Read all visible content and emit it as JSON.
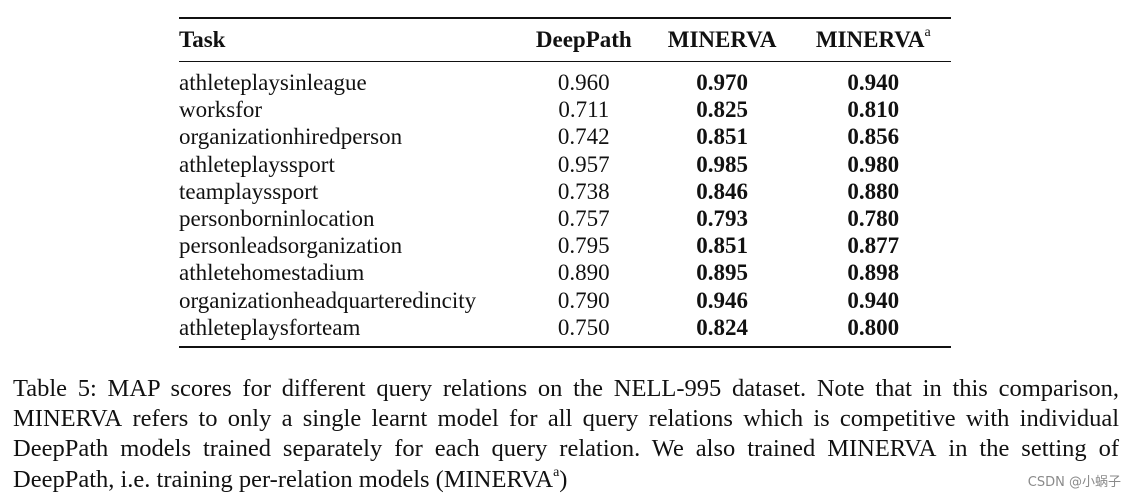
{
  "table": {
    "headers": {
      "task": "Task",
      "deeppath": "DeepPath",
      "minerva": "MINERVA",
      "minerva_a": "MINERVA",
      "minerva_a_sup": "a"
    },
    "rows": [
      {
        "task": "athleteplaysinleague",
        "deeppath": "0.960",
        "minerva": "0.970",
        "minerva_a": "0.940"
      },
      {
        "task": "worksfor",
        "deeppath": "0.711",
        "minerva": "0.825",
        "minerva_a": "0.810"
      },
      {
        "task": "organizationhiredperson",
        "deeppath": "0.742",
        "minerva": "0.851",
        "minerva_a": "0.856"
      },
      {
        "task": "athleteplayssport",
        "deeppath": "0.957",
        "minerva": "0.985",
        "minerva_a": "0.980"
      },
      {
        "task": "teamplayssport",
        "deeppath": "0.738",
        "minerva": "0.846",
        "minerva_a": "0.880"
      },
      {
        "task": "personborninlocation",
        "deeppath": "0.757",
        "minerva": "0.793",
        "minerva_a": "0.780"
      },
      {
        "task": "personleadsorganization",
        "deeppath": "0.795",
        "minerva": "0.851",
        "minerva_a": "0.877"
      },
      {
        "task": "athletehomestadium",
        "deeppath": "0.890",
        "minerva": "0.895",
        "minerva_a": "0.898"
      },
      {
        "task": "organizationheadquarteredincity",
        "deeppath": "0.790",
        "minerva": "0.946",
        "minerva_a": "0.940"
      },
      {
        "task": "athleteplaysforteam",
        "deeppath": "0.750",
        "minerva": "0.824",
        "minerva_a": "0.800"
      }
    ]
  },
  "caption": {
    "p1": "Table 5: MAP scores for different query relations on the ",
    "nell": "NELL",
    "p2": "-995 dataset.  Note that in this comparison, ",
    "minerva1": "MINERVA",
    "p3": " refers to only a single learnt model for all query relations which is competitive with individual DeepPath models trained separately for each query relation. We also trained ",
    "minerva2": "MINERVA",
    "p4": " in the setting of DeepPath, i.e. training per-relation models (",
    "minerva3": "MINERVA",
    "sup": "a",
    "p5": ")"
  },
  "watermark": "CSDN @小蜗子"
}
